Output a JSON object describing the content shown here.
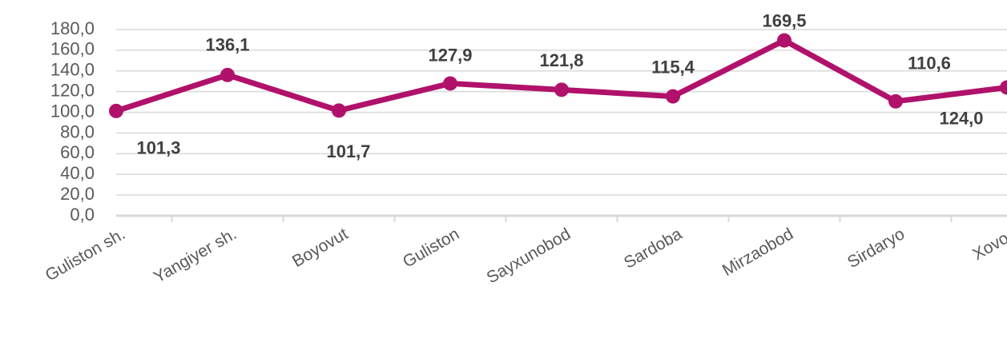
{
  "chart_data": {
    "type": "line",
    "categories": [
      "Guliston sh.",
      "Yangiyer sh.",
      "Boyovut",
      "Guliston",
      "Sayxunobod",
      "Sardoba",
      "Mirzaobod",
      "Sirdaryo",
      "Xovos"
    ],
    "series": [
      {
        "name": null,
        "color": "#b0126b",
        "values": [
          101.3,
          136.1,
          101.7,
          127.9,
          121.8,
          115.4,
          169.5,
          110.6,
          124.0
        ],
        "value_labels": [
          "101,3",
          "136,1",
          "101,7",
          "127,9",
          "121,8",
          "115,4",
          "169,5",
          "110,6",
          "124,0"
        ]
      }
    ],
    "ylim": [
      0,
      180
    ],
    "yticks": [
      {
        "value": 0,
        "label": "0,0"
      },
      {
        "value": 20,
        "label": "20,0"
      },
      {
        "value": 40,
        "label": "40,0"
      },
      {
        "value": 60,
        "label": "60,0"
      },
      {
        "value": 80,
        "label": "80,0"
      },
      {
        "value": 100,
        "label": "100,0"
      },
      {
        "value": 120,
        "label": "120,0"
      },
      {
        "value": 140,
        "label": "140,0"
      },
      {
        "value": 160,
        "label": "160,0"
      },
      {
        "value": 180,
        "label": "180,0"
      }
    ],
    "grid": true
  }
}
